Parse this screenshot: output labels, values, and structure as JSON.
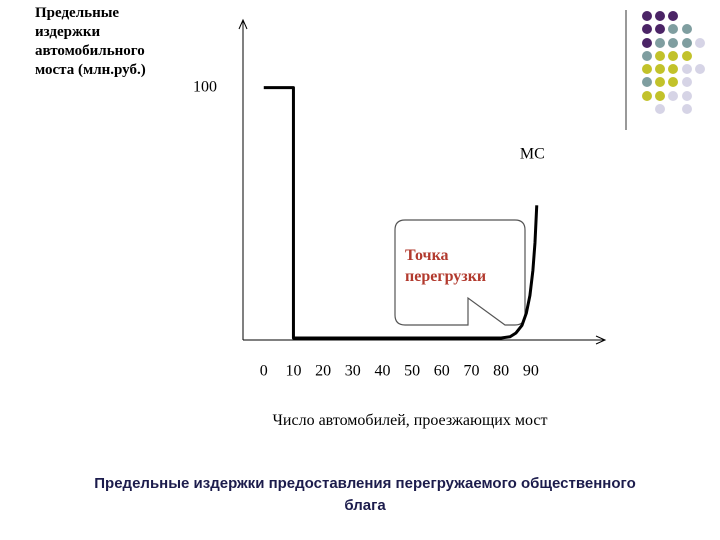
{
  "chart_data": {
    "type": "line",
    "title": "Предельные издержки предоставления перегружаемого общественного блага",
    "y_label": "Предельные издержки автомобильного моста (млн.руб.)",
    "x_label": "Число автомобилей, проезжающих мост",
    "annotation": "Точка перегрузки",
    "x": [
      0,
      10,
      10,
      80,
      83,
      85,
      87,
      88.5,
      89.7,
      90.7,
      91.4,
      92
    ],
    "series": [
      {
        "name": "MC",
        "color": "#000000",
        "values": [
          100,
          100,
          0,
          0,
          0.5,
          2,
          5,
          10,
          17,
          27,
          38,
          53
        ]
      }
    ],
    "xlim": [
      -7,
      115
    ],
    "ylim": [
      0,
      127
    ],
    "xticks": [
      0,
      10,
      20,
      30,
      40,
      50,
      60,
      70,
      80,
      90
    ],
    "yticks": [
      100
    ],
    "grid": false
  }
}
